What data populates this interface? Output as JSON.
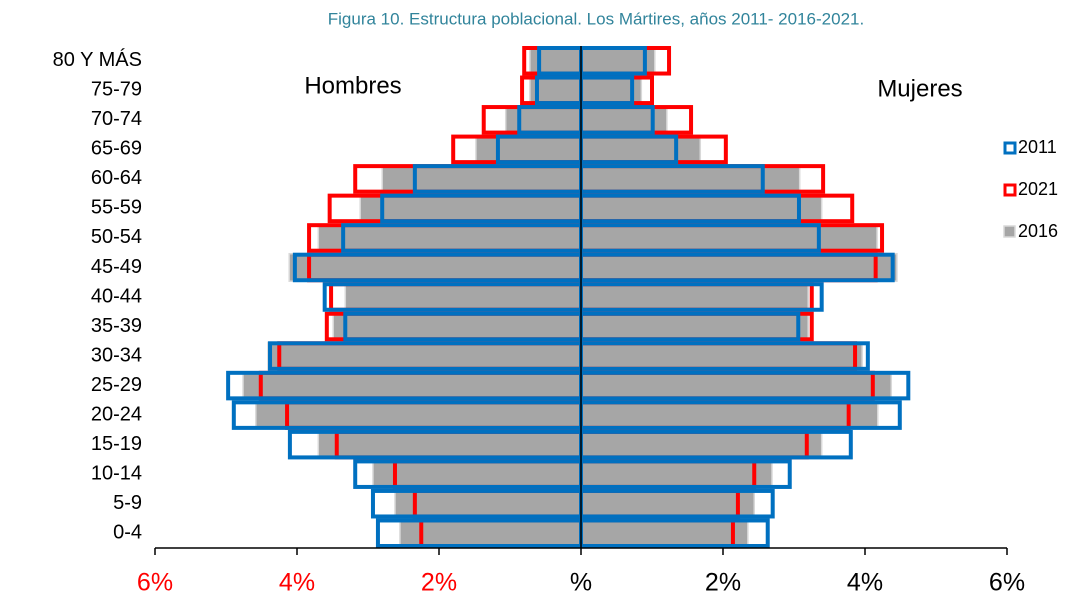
{
  "chart_data": {
    "type": "pyramid",
    "title": "Figura 10. Estructura poblacional. Los Mártires, años 2011- 2016-2021.",
    "left_label": "Hombres",
    "right_label": "Mujeres",
    "categories": [
      "0-4",
      "5-9",
      "10-14",
      "15-19",
      "20-24",
      "25-29",
      "30-34",
      "35-39",
      "40-44",
      "45-49",
      "50-54",
      "55-59",
      "60-64",
      "65-69",
      "70-74",
      "75-79",
      "80 Y MÁS"
    ],
    "xlim": [
      -6,
      6
    ],
    "xticks": [
      {
        "value": -6,
        "label": "6%"
      },
      {
        "value": -4,
        "label": "4%"
      },
      {
        "value": -2,
        "label": "2%"
      },
      {
        "value": 0,
        "label": "%"
      },
      {
        "value": 2,
        "label": "2%"
      },
      {
        "value": 4,
        "label": "4%"
      },
      {
        "value": 6,
        "label": "6%"
      }
    ],
    "left_tick_color": "#ff0000",
    "series": [
      {
        "name": "2011",
        "color": "#0070c0",
        "style": "outline",
        "values_left": [
          -2.86,
          -2.93,
          -3.18,
          -4.1,
          -4.89,
          -4.97,
          -4.38,
          -3.32,
          -3.61,
          -4.03,
          -3.35,
          -2.8,
          -2.34,
          -1.17,
          -0.87,
          -0.62,
          -0.59
        ],
        "values_right": [
          2.63,
          2.7,
          2.94,
          3.8,
          4.49,
          4.61,
          4.04,
          3.06,
          3.39,
          4.39,
          3.35,
          3.07,
          2.56,
          1.34,
          1.01,
          0.72,
          0.9
        ]
      },
      {
        "name": "2021",
        "color": "#ff0000",
        "style": "outline",
        "values_left": [
          -2.25,
          -2.34,
          -2.62,
          -3.44,
          -4.14,
          -4.51,
          -4.25,
          -3.58,
          -3.52,
          -3.83,
          -3.83,
          -3.54,
          -3.18,
          -1.8,
          -1.37,
          -0.83,
          -0.8
        ],
        "values_right": [
          2.14,
          2.21,
          2.44,
          3.18,
          3.77,
          4.11,
          3.86,
          3.25,
          3.25,
          4.15,
          4.24,
          3.82,
          3.41,
          2.04,
          1.55,
          1.0,
          1.24
        ]
      },
      {
        "name": "2016",
        "color": "#a6a6a6",
        "style": "fill",
        "values_left": [
          -2.55,
          -2.62,
          -2.93,
          -3.7,
          -4.58,
          -4.76,
          -4.41,
          -3.49,
          -3.32,
          -4.11,
          -3.7,
          -3.11,
          -2.8,
          -1.48,
          -1.06,
          -0.72,
          -0.72
        ],
        "values_right": [
          2.35,
          2.44,
          2.69,
          3.39,
          4.18,
          4.37,
          3.96,
          3.2,
          3.2,
          4.45,
          4.17,
          3.39,
          3.08,
          1.68,
          1.21,
          0.85,
          1.04
        ]
      }
    ]
  }
}
